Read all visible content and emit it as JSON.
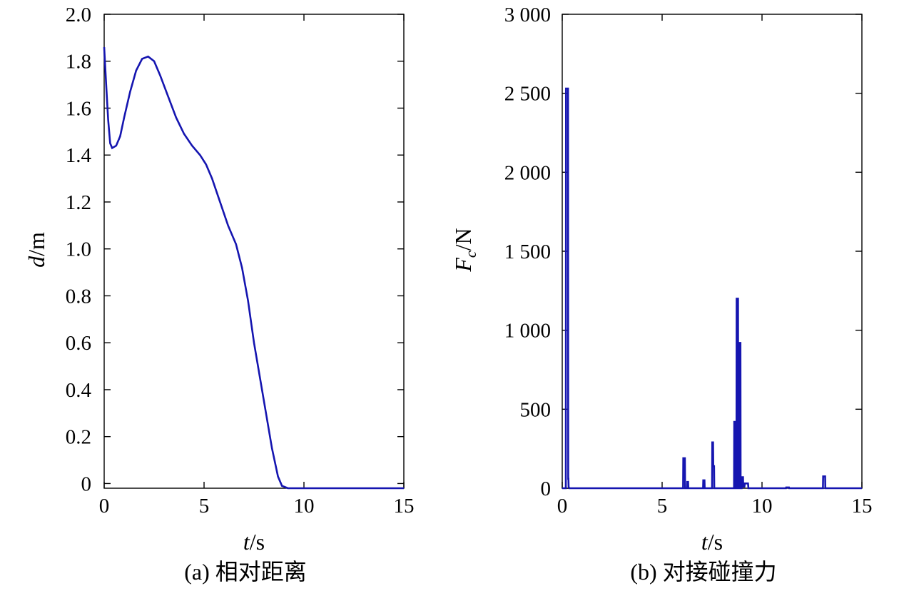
{
  "chart_data": [
    {
      "type": "line",
      "caption": "(a) 相对距离",
      "xlabel_var": "t",
      "xlabel_unit": "/s",
      "ylabel_var": "d",
      "ylabel_unit": "/m",
      "xlim": [
        0,
        15
      ],
      "ylim": [
        -0.02,
        2.0
      ],
      "xticks": [
        0,
        5,
        10,
        15
      ],
      "xtick_labels": [
        "0",
        "5",
        "10",
        "15"
      ],
      "yticks": [
        0,
        0.2,
        0.4,
        0.6,
        0.8,
        1.0,
        1.2,
        1.4,
        1.6,
        1.8,
        2.0
      ],
      "ytick_labels": [
        "0",
        "0.2",
        "0.4",
        "0.6",
        "0.8",
        "1.0",
        "1.2",
        "1.4",
        "1.6",
        "1.8",
        "2.0"
      ],
      "color": "#1515b0",
      "series": [
        {
          "x": [
            0,
            0.1,
            0.2,
            0.3,
            0.4,
            0.6,
            0.8,
            1.0,
            1.3,
            1.6,
            1.9,
            2.2,
            2.5,
            2.8,
            3.2,
            3.6,
            4.0,
            4.4,
            4.8,
            5.1,
            5.4,
            5.8,
            6.2,
            6.6,
            6.9,
            7.2,
            7.5,
            7.8,
            8.1,
            8.4,
            8.7,
            8.9,
            9.2,
            10.0,
            11.0,
            12.0,
            13.0,
            14.0,
            15.0
          ],
          "y": [
            1.86,
            1.7,
            1.55,
            1.45,
            1.43,
            1.44,
            1.48,
            1.56,
            1.67,
            1.76,
            1.81,
            1.82,
            1.8,
            1.74,
            1.65,
            1.56,
            1.49,
            1.44,
            1.4,
            1.36,
            1.3,
            1.2,
            1.1,
            1.02,
            0.92,
            0.78,
            0.6,
            0.45,
            0.3,
            0.15,
            0.03,
            -0.01,
            -0.02,
            -0.02,
            -0.02,
            -0.02,
            -0.02,
            -0.02,
            -0.02
          ]
        }
      ]
    },
    {
      "type": "line",
      "caption": "(b) 对接碰撞力",
      "xlabel_var": "t",
      "xlabel_unit": "/s",
      "ylabel_var": "F",
      "ylabel_sub": "c",
      "ylabel_unit": "/N",
      "xlim": [
        0,
        15
      ],
      "ylim": [
        0,
        3000
      ],
      "xticks": [
        0,
        5,
        10,
        15
      ],
      "xtick_labels": [
        "0",
        "5",
        "10",
        "15"
      ],
      "yticks": [
        0,
        500,
        1000,
        1500,
        2000,
        2500,
        3000
      ],
      "ytick_labels": [
        "0",
        "500",
        "1 000",
        "1 500",
        "2 000",
        "2 500",
        "3 000"
      ],
      "color": "#1515b0",
      "series": [
        {
          "x": [
            0,
            0.18,
            0.19,
            0.29,
            0.3,
            0.31,
            0.32,
            0.35,
            6.05,
            6.06,
            6.14,
            6.15,
            6.25,
            6.26,
            6.3,
            6.31,
            7.05,
            7.06,
            7.12,
            7.13,
            7.5,
            7.51,
            7.55,
            7.56,
            7.6,
            7.61,
            8.6,
            8.61,
            8.66,
            8.67,
            8.72,
            8.73,
            8.8,
            8.81,
            8.85,
            8.86,
            8.92,
            8.93,
            8.98,
            9.0,
            9.05,
            9.06,
            9.12,
            9.14,
            9.3,
            9.32,
            9.45,
            11.2,
            11.21,
            11.35,
            11.36,
            13.05,
            13.06,
            13.16,
            13.17,
            15.0
          ],
          "y": [
            0,
            0,
            2530,
            2530,
            60,
            60,
            10,
            0,
            0,
            190,
            190,
            0,
            0,
            40,
            40,
            0,
            0,
            50,
            50,
            0,
            0,
            290,
            290,
            140,
            140,
            0,
            0,
            420,
            420,
            0,
            0,
            1200,
            1200,
            0,
            0,
            920,
            920,
            0,
            0,
            70,
            70,
            10,
            10,
            30,
            30,
            0,
            0,
            0,
            5,
            5,
            0,
            0,
            75,
            75,
            0,
            0
          ]
        }
      ]
    }
  ]
}
